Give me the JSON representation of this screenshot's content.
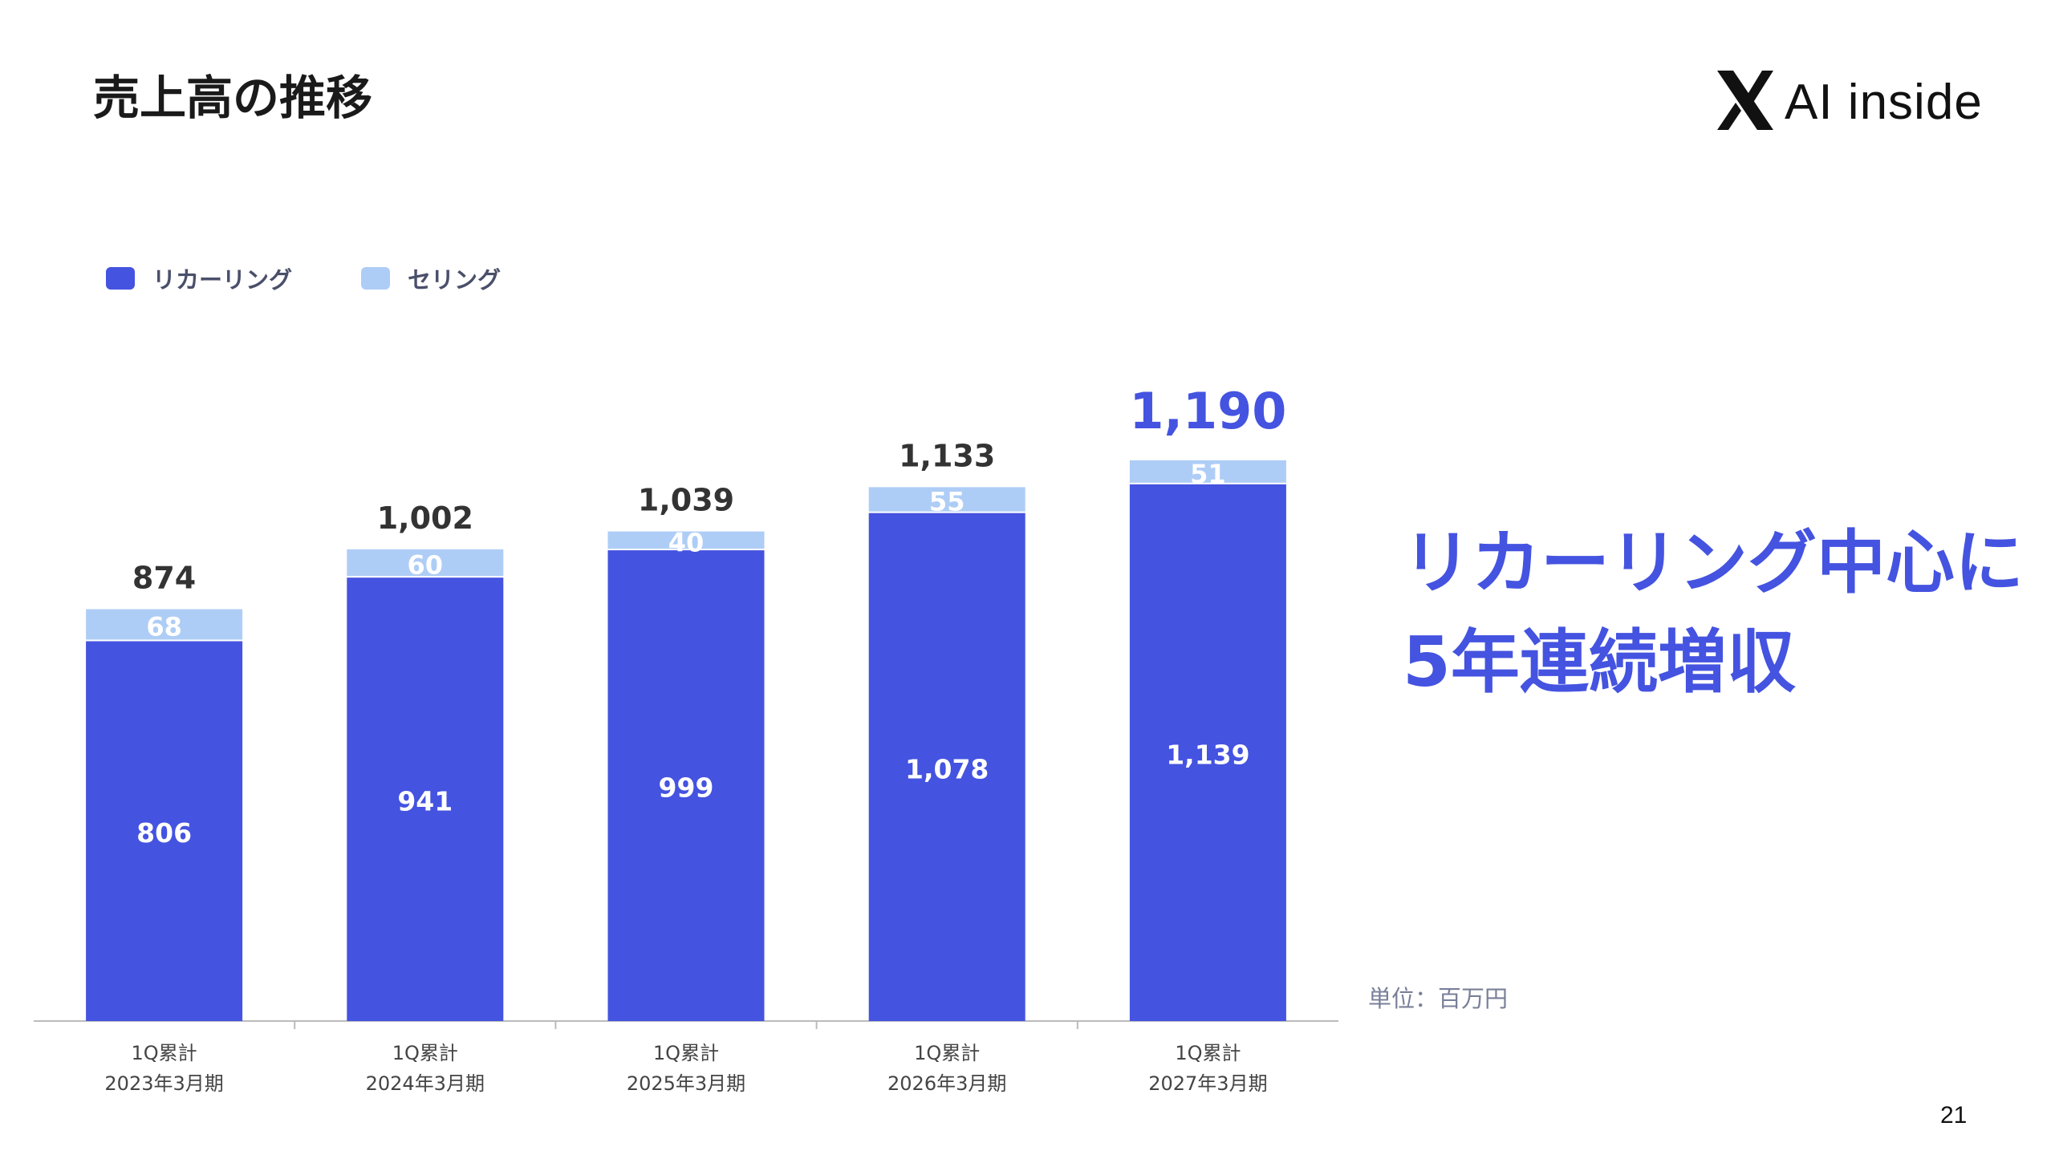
{
  "header": {
    "title": "売上高の推移",
    "logo_text": "AI inside",
    "logo_icon": "x-mark-icon"
  },
  "legend": {
    "recurring_label": "リカーリング",
    "selling_label": "セリング"
  },
  "headline": {
    "line1": "リカーリング中心に",
    "line2": "5年連続増収"
  },
  "unit_note": "単位：百万円",
  "page_number": "21",
  "colors": {
    "recurring": "#4453e0",
    "selling": "#aecdf6",
    "total_label": "#333333",
    "highlight_total": "#4453e0",
    "axis": "#bbbbbb"
  },
  "chart_data": {
    "type": "bar",
    "stacked": true,
    "categories": [
      [
        "1Q累計",
        "2023年3月期"
      ],
      [
        "1Q累計",
        "2024年3月期"
      ],
      [
        "1Q累計",
        "2025年3月期"
      ],
      [
        "1Q累計",
        "2026年3月期"
      ],
      [
        "1Q累計",
        "2027年3月期"
      ]
    ],
    "series": [
      {
        "name": "リカーリング",
        "values": [
          806,
          941,
          999,
          1078,
          1139
        ],
        "labels": [
          "806",
          "941",
          "999",
          "1,078",
          "1,139"
        ]
      },
      {
        "name": "セリング",
        "values": [
          68,
          60,
          40,
          55,
          51
        ],
        "labels": [
          "68",
          "60",
          "40",
          "55",
          "51"
        ]
      }
    ],
    "totals": [
      874,
      1002,
      1039,
      1133,
      1190
    ],
    "total_labels": [
      "874",
      "1,002",
      "1,039",
      "1,133",
      "1,190"
    ],
    "highlight_index": 4,
    "ylim": [
      0,
      1250
    ],
    "legend": "top-left",
    "grid": false
  }
}
